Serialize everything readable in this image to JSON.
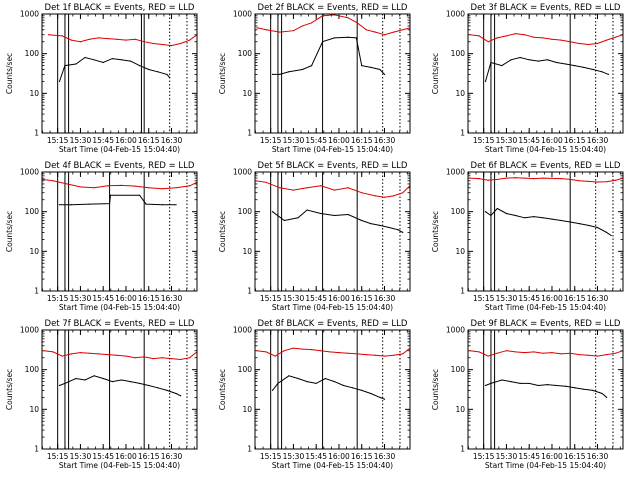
{
  "xlabel": "Start Time (04-Feb-15 15:04:40)",
  "ylabel": "Counts/sec",
  "y_tick_labels": [
    "1",
    "10",
    "100",
    "1000"
  ],
  "colors": {
    "events": "#000000",
    "lld": "#dd0000",
    "frame": "#000000",
    "background": "#ffffff"
  },
  "chart_data": [
    {
      "type": "line",
      "title": "Det 1f BLACK = Events, RED = LLD",
      "x_tick_labels": [
        "15:15",
        "15:30",
        "15:45",
        "16:00",
        "16:15",
        "16:30"
      ],
      "xlim": [
        15.078,
        16.78
      ],
      "ylim": [
        1,
        1000
      ],
      "log_y": true,
      "markers": {
        "solid": [
          15.25,
          15.33,
          15.37,
          16.17,
          16.2
        ],
        "dotted": [
          16.48,
          16.67
        ]
      },
      "series": [
        {
          "name": "Events",
          "color": "#000000",
          "x": [
            15.27,
            15.33,
            15.45,
            15.55,
            15.65,
            15.75,
            15.85,
            15.95,
            16.05,
            16.15,
            16.25,
            16.35,
            16.45,
            16.48
          ],
          "y": [
            20,
            50,
            55,
            80,
            70,
            60,
            75,
            70,
            65,
            50,
            40,
            35,
            30,
            25
          ]
        },
        {
          "name": "LLD",
          "color": "#dd0000",
          "x": [
            15.15,
            15.3,
            15.4,
            15.5,
            15.6,
            15.7,
            15.8,
            15.9,
            16.0,
            16.1,
            16.2,
            16.3,
            16.4,
            16.5,
            16.6,
            16.7,
            16.78
          ],
          "y": [
            300,
            280,
            220,
            200,
            230,
            250,
            240,
            230,
            220,
            230,
            200,
            180,
            170,
            160,
            180,
            220,
            300
          ]
        }
      ]
    },
    {
      "type": "line",
      "title": "Det 2f BLACK = Events, RED = LLD",
      "x_tick_labels": [
        "15:15",
        "15:30",
        "15:45",
        "16:00",
        "16:15",
        "16:30"
      ],
      "xlim": [
        15.078,
        16.78
      ],
      "ylim": [
        1,
        1000
      ],
      "log_y": true,
      "markers": {
        "solid": [
          15.25,
          15.33,
          15.37,
          15.82,
          16.2
        ],
        "dotted": [
          16.48,
          16.67
        ]
      },
      "series": [
        {
          "name": "Events",
          "color": "#000000",
          "x": [
            15.27,
            15.35,
            15.45,
            15.6,
            15.7,
            15.82,
            15.95,
            16.1,
            16.19,
            16.25,
            16.35,
            16.45,
            16.5
          ],
          "y": [
            30,
            30,
            35,
            40,
            50,
            200,
            250,
            260,
            250,
            50,
            45,
            40,
            30
          ]
        },
        {
          "name": "LLD",
          "color": "#dd0000",
          "x": [
            15.1,
            15.2,
            15.35,
            15.5,
            15.6,
            15.7,
            15.82,
            15.95,
            16.1,
            16.2,
            16.3,
            16.4,
            16.5,
            16.6,
            16.78
          ],
          "y": [
            450,
            400,
            350,
            380,
            500,
            600,
            900,
            950,
            800,
            600,
            400,
            350,
            300,
            350,
            450
          ]
        }
      ]
    },
    {
      "type": "line",
      "title": "Det 3f BLACK = Events, RED = LLD",
      "x_tick_labels": [
        "15:15",
        "15:30",
        "15:45",
        "16:00",
        "16:15",
        "16:30"
      ],
      "xlim": [
        15.078,
        16.78
      ],
      "ylim": [
        1,
        1000
      ],
      "log_y": true,
      "markers": {
        "solid": [
          15.25,
          15.33,
          15.37,
          16.2
        ],
        "dotted": [
          16.48,
          16.67
        ]
      },
      "series": [
        {
          "name": "Events",
          "color": "#000000",
          "x": [
            15.27,
            15.33,
            15.45,
            15.55,
            15.65,
            15.75,
            15.85,
            15.95,
            16.05,
            16.15,
            16.25,
            16.35,
            16.45,
            16.55,
            16.62
          ],
          "y": [
            20,
            60,
            50,
            70,
            80,
            70,
            65,
            70,
            60,
            55,
            50,
            45,
            40,
            35,
            30
          ]
        },
        {
          "name": "LLD",
          "color": "#dd0000",
          "x": [
            15.1,
            15.2,
            15.3,
            15.4,
            15.5,
            15.6,
            15.7,
            15.8,
            15.9,
            16.0,
            16.1,
            16.2,
            16.3,
            16.4,
            16.5,
            16.6,
            16.78
          ],
          "y": [
            300,
            280,
            200,
            250,
            280,
            320,
            300,
            260,
            250,
            230,
            220,
            200,
            180,
            170,
            180,
            220,
            300
          ]
        }
      ]
    },
    {
      "type": "line",
      "title": "Det 4f BLACK = Events, RED = LLD",
      "x_tick_labels": [
        "15:15",
        "15:30",
        "15:45",
        "16:00",
        "16:15",
        "16:30"
      ],
      "xlim": [
        15.078,
        16.78
      ],
      "ylim": [
        1,
        1000
      ],
      "log_y": true,
      "markers": {
        "solid": [
          15.25,
          15.33,
          15.37,
          15.82,
          16.2
        ],
        "dotted": [
          16.48,
          16.67
        ]
      },
      "series": [
        {
          "name": "Events",
          "color": "#000000",
          "x": [
            15.27,
            15.4,
            15.6,
            15.82,
            15.83,
            16.15,
            16.22,
            16.4,
            16.55
          ],
          "y": [
            150,
            150,
            155,
            160,
            260,
            260,
            155,
            150,
            150
          ]
        },
        {
          "name": "LLD",
          "color": "#dd0000",
          "x": [
            15.08,
            15.2,
            15.35,
            15.5,
            15.65,
            15.8,
            15.95,
            16.1,
            16.25,
            16.4,
            16.55,
            16.7,
            16.78
          ],
          "y": [
            650,
            600,
            500,
            420,
            400,
            450,
            460,
            440,
            400,
            380,
            400,
            450,
            550
          ]
        }
      ]
    },
    {
      "type": "line",
      "title": "Det 5f BLACK = Events, RED = LLD",
      "x_tick_labels": [
        "15:15",
        "15:30",
        "15:45",
        "16:00",
        "16:15",
        "16:30"
      ],
      "xlim": [
        15.078,
        16.78
      ],
      "ylim": [
        1,
        1000
      ],
      "log_y": true,
      "markers": {
        "solid": [
          15.25,
          15.33,
          15.37,
          15.82,
          16.2
        ],
        "dotted": [
          16.48,
          16.67
        ]
      },
      "series": [
        {
          "name": "Events",
          "color": "#000000",
          "x": [
            15.27,
            15.4,
            15.55,
            15.65,
            15.8,
            15.95,
            16.1,
            16.25,
            16.35,
            16.45,
            16.55,
            16.65,
            16.7
          ],
          "y": [
            100,
            60,
            70,
            110,
            90,
            80,
            85,
            60,
            50,
            45,
            40,
            35,
            30
          ]
        },
        {
          "name": "LLD",
          "color": "#dd0000",
          "x": [
            15.08,
            15.2,
            15.35,
            15.5,
            15.65,
            15.8,
            15.95,
            16.1,
            16.25,
            16.4,
            16.5,
            16.6,
            16.7,
            16.78
          ],
          "y": [
            600,
            550,
            400,
            350,
            400,
            450,
            350,
            400,
            300,
            250,
            230,
            250,
            300,
            450
          ]
        }
      ]
    },
    {
      "type": "line",
      "title": "Det 6f BLACK = Events, RED = LLD",
      "x_tick_labels": [
        "15:15",
        "15:30",
        "15:45",
        "16:00",
        "16:15",
        "16:30"
      ],
      "xlim": [
        15.078,
        16.78
      ],
      "ylim": [
        1,
        1000
      ],
      "log_y": true,
      "markers": {
        "solid": [
          15.25,
          15.33,
          15.37,
          16.2
        ],
        "dotted": [
          16.48,
          16.67
        ]
      },
      "series": [
        {
          "name": "Events",
          "color": "#000000",
          "x": [
            15.27,
            15.33,
            15.4,
            15.5,
            15.6,
            15.7,
            15.8,
            15.9,
            16.0,
            16.1,
            16.2,
            16.3,
            16.4,
            16.5,
            16.6,
            16.65
          ],
          "y": [
            100,
            80,
            120,
            90,
            80,
            70,
            75,
            70,
            65,
            60,
            55,
            50,
            45,
            40,
            30,
            25
          ]
        },
        {
          "name": "LLD",
          "color": "#dd0000",
          "x": [
            15.1,
            15.2,
            15.3,
            15.4,
            15.5,
            15.6,
            15.7,
            15.8,
            15.9,
            16.0,
            16.1,
            16.2,
            16.3,
            16.4,
            16.5,
            16.6,
            16.7,
            16.78
          ],
          "y": [
            700,
            680,
            620,
            650,
            700,
            720,
            700,
            680,
            700,
            690,
            680,
            650,
            600,
            580,
            560,
            570,
            620,
            700
          ]
        }
      ]
    },
    {
      "type": "line",
      "title": "Det 7f BLACK = Events, RED = LLD",
      "x_tick_labels": [
        "15:15",
        "15:30",
        "15:45",
        "16:00",
        "16:15",
        "16:30"
      ],
      "xlim": [
        15.078,
        16.78
      ],
      "ylim": [
        1,
        1000
      ],
      "log_y": true,
      "markers": {
        "solid": [
          15.25,
          15.33,
          15.37,
          15.82,
          16.2
        ],
        "dotted": [
          16.48,
          16.67
        ]
      },
      "series": [
        {
          "name": "Events",
          "color": "#000000",
          "x": [
            15.27,
            15.33,
            15.45,
            15.55,
            15.65,
            15.75,
            15.85,
            15.95,
            16.05,
            16.15,
            16.25,
            16.35,
            16.45,
            16.55,
            16.6
          ],
          "y": [
            40,
            45,
            60,
            55,
            70,
            60,
            50,
            55,
            50,
            45,
            40,
            35,
            30,
            25,
            22
          ]
        },
        {
          "name": "LLD",
          "color": "#dd0000",
          "x": [
            15.1,
            15.2,
            15.3,
            15.4,
            15.5,
            15.6,
            15.7,
            15.8,
            15.9,
            16.0,
            16.1,
            16.2,
            16.3,
            16.4,
            16.5,
            16.6,
            16.7,
            16.78
          ],
          "y": [
            300,
            280,
            220,
            250,
            270,
            260,
            250,
            240,
            230,
            220,
            200,
            210,
            190,
            200,
            190,
            180,
            200,
            280
          ]
        }
      ]
    },
    {
      "type": "line",
      "title": "Det 8f BLACK = Events, RED = LLD",
      "x_tick_labels": [
        "15:15",
        "15:30",
        "15:45",
        "16:00",
        "16:15",
        "16:30"
      ],
      "xlim": [
        15.078,
        16.78
      ],
      "ylim": [
        1,
        1000
      ],
      "log_y": true,
      "markers": {
        "solid": [
          15.25,
          15.33,
          15.37,
          15.82,
          16.2
        ],
        "dotted": [
          16.48,
          16.67
        ]
      },
      "series": [
        {
          "name": "Events",
          "color": "#000000",
          "x": [
            15.27,
            15.33,
            15.45,
            15.55,
            15.65,
            15.75,
            15.85,
            15.95,
            16.05,
            16.15,
            16.25,
            16.35,
            16.45,
            16.5
          ],
          "y": [
            30,
            45,
            70,
            60,
            50,
            45,
            60,
            50,
            40,
            35,
            30,
            25,
            20,
            18
          ]
        },
        {
          "name": "LLD",
          "color": "#dd0000",
          "x": [
            15.1,
            15.2,
            15.3,
            15.4,
            15.5,
            15.6,
            15.7,
            15.8,
            15.9,
            16.0,
            16.1,
            16.2,
            16.3,
            16.4,
            16.5,
            16.6,
            16.7,
            16.78
          ],
          "y": [
            300,
            280,
            220,
            300,
            350,
            330,
            320,
            300,
            280,
            270,
            260,
            250,
            240,
            230,
            220,
            230,
            250,
            350
          ]
        }
      ]
    },
    {
      "type": "line",
      "title": "Det 9f BLACK = Events, RED = LLD",
      "x_tick_labels": [
        "15:15",
        "15:30",
        "15:45",
        "16:00",
        "16:15",
        "16:30"
      ],
      "xlim": [
        15.078,
        16.78
      ],
      "ylim": [
        1,
        1000
      ],
      "log_y": true,
      "markers": {
        "solid": [
          15.25,
          15.33,
          15.37,
          16.2
        ],
        "dotted": [
          16.48,
          16.67
        ]
      },
      "series": [
        {
          "name": "Events",
          "color": "#000000",
          "x": [
            15.27,
            15.33,
            15.45,
            15.55,
            15.65,
            15.75,
            15.85,
            15.95,
            16.05,
            16.15,
            16.25,
            16.35,
            16.45,
            16.55,
            16.6
          ],
          "y": [
            40,
            45,
            55,
            50,
            45,
            45,
            40,
            42,
            40,
            38,
            35,
            32,
            30,
            25,
            20
          ]
        },
        {
          "name": "LLD",
          "color": "#dd0000",
          "x": [
            15.1,
            15.2,
            15.3,
            15.4,
            15.5,
            15.6,
            15.7,
            15.8,
            15.9,
            16.0,
            16.1,
            16.2,
            16.3,
            16.4,
            16.5,
            16.6,
            16.7,
            16.78
          ],
          "y": [
            300,
            280,
            220,
            260,
            300,
            280,
            270,
            280,
            260,
            270,
            250,
            260,
            240,
            230,
            220,
            240,
            260,
            300
          ]
        }
      ]
    }
  ]
}
